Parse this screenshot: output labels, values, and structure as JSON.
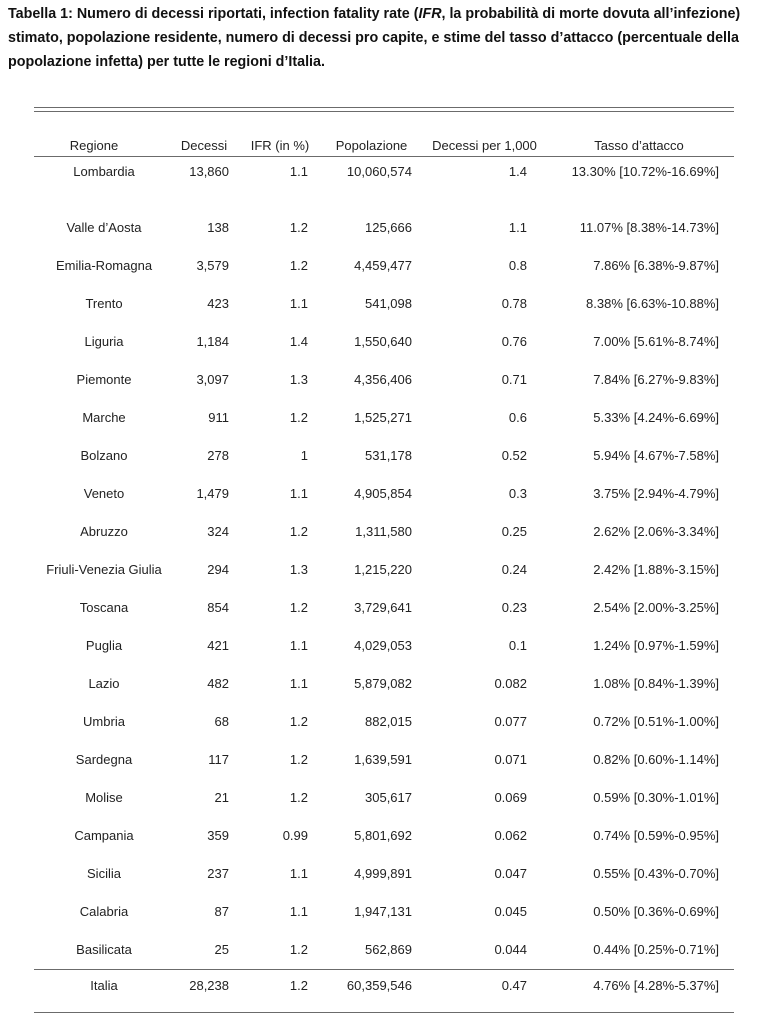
{
  "caption": {
    "part1": "Tabella 1: Numero di decessi riportati, infection fatality rate (",
    "italic": "IFR",
    "part2": ", la probabilità di morte dovuta all’infezione) stimato, popolazione residente, numero di decessi pro capite, e stime del tasso d’attacco (percentuale della popolazione infetta) per tutte le regioni d’Italia."
  },
  "table": {
    "headers": [
      "Regione",
      "Decessi",
      "IFR (in %)",
      "Popolazione",
      "Decessi per 1,000",
      "Tasso d’attacco"
    ],
    "rows": [
      [
        "Lombardia",
        "13,860",
        "1.1",
        "10,060,574",
        "1.4",
        "13.30% [10.72%-16.69%]"
      ],
      [
        "Valle d’Aosta",
        "138",
        "1.2",
        "125,666",
        "1.1",
        "11.07% [8.38%-14.73%]"
      ],
      [
        "Emilia-Romagna",
        "3,579",
        "1.2",
        "4,459,477",
        "0.8",
        "7.86% [6.38%-9.87%]"
      ],
      [
        "Trento",
        "423",
        "1.1",
        "541,098",
        "0.78",
        "8.38% [6.63%-10.88%]"
      ],
      [
        "Liguria",
        "1,184",
        "1.4",
        "1,550,640",
        "0.76",
        "7.00% [5.61%-8.74%]"
      ],
      [
        "Piemonte",
        "3,097",
        "1.3",
        "4,356,406",
        "0.71",
        "7.84% [6.27%-9.83%]"
      ],
      [
        "Marche",
        "911",
        "1.2",
        "1,525,271",
        "0.6",
        "5.33% [4.24%-6.69%]"
      ],
      [
        "Bolzano",
        "278",
        "1",
        "531,178",
        "0.52",
        "5.94% [4.67%-7.58%]"
      ],
      [
        "Veneto",
        "1,479",
        "1.1",
        "4,905,854",
        "0.3",
        "3.75% [2.94%-4.79%]"
      ],
      [
        "Abruzzo",
        "324",
        "1.2",
        "1,311,580",
        "0.25",
        "2.62% [2.06%-3.34%]"
      ],
      [
        "Friuli-Venezia Giulia",
        "294",
        "1.3",
        "1,215,220",
        "0.24",
        "2.42% [1.88%-3.15%]"
      ],
      [
        "Toscana",
        "854",
        "1.2",
        "3,729,641",
        "0.23",
        "2.54% [2.00%-3.25%]"
      ],
      [
        "Puglia",
        "421",
        "1.1",
        "4,029,053",
        "0.1",
        "1.24% [0.97%-1.59%]"
      ],
      [
        "Lazio",
        "482",
        "1.1",
        "5,879,082",
        "0.082",
        "1.08% [0.84%-1.39%]"
      ],
      [
        "Umbria",
        "68",
        "1.2",
        "882,015",
        "0.077",
        "0.72% [0.51%-1.00%]"
      ],
      [
        "Sardegna",
        "117",
        "1.2",
        "1,639,591",
        "0.071",
        "0.82% [0.60%-1.14%]"
      ],
      [
        "Molise",
        "21",
        "1.2",
        "305,617",
        "0.069",
        "0.59% [0.30%-1.01%]"
      ],
      [
        "Campania",
        "359",
        "0.99",
        "5,801,692",
        "0.062",
        "0.74% [0.59%-0.95%]"
      ],
      [
        "Sicilia",
        "237",
        "1.1",
        "4,999,891",
        "0.047",
        "0.55% [0.43%-0.70%]"
      ],
      [
        "Calabria",
        "87",
        "1.1",
        "1,947,131",
        "0.045",
        "0.50% [0.36%-0.69%]"
      ],
      [
        "Basilicata",
        "25",
        "1.2",
        "562,869",
        "0.044",
        "0.44% [0.25%-0.71%]"
      ]
    ],
    "total": [
      "Italia",
      "28,238",
      "1.2",
      "60,359,546",
      "0.47",
      "4.76% [4.28%-5.37%]"
    ]
  }
}
